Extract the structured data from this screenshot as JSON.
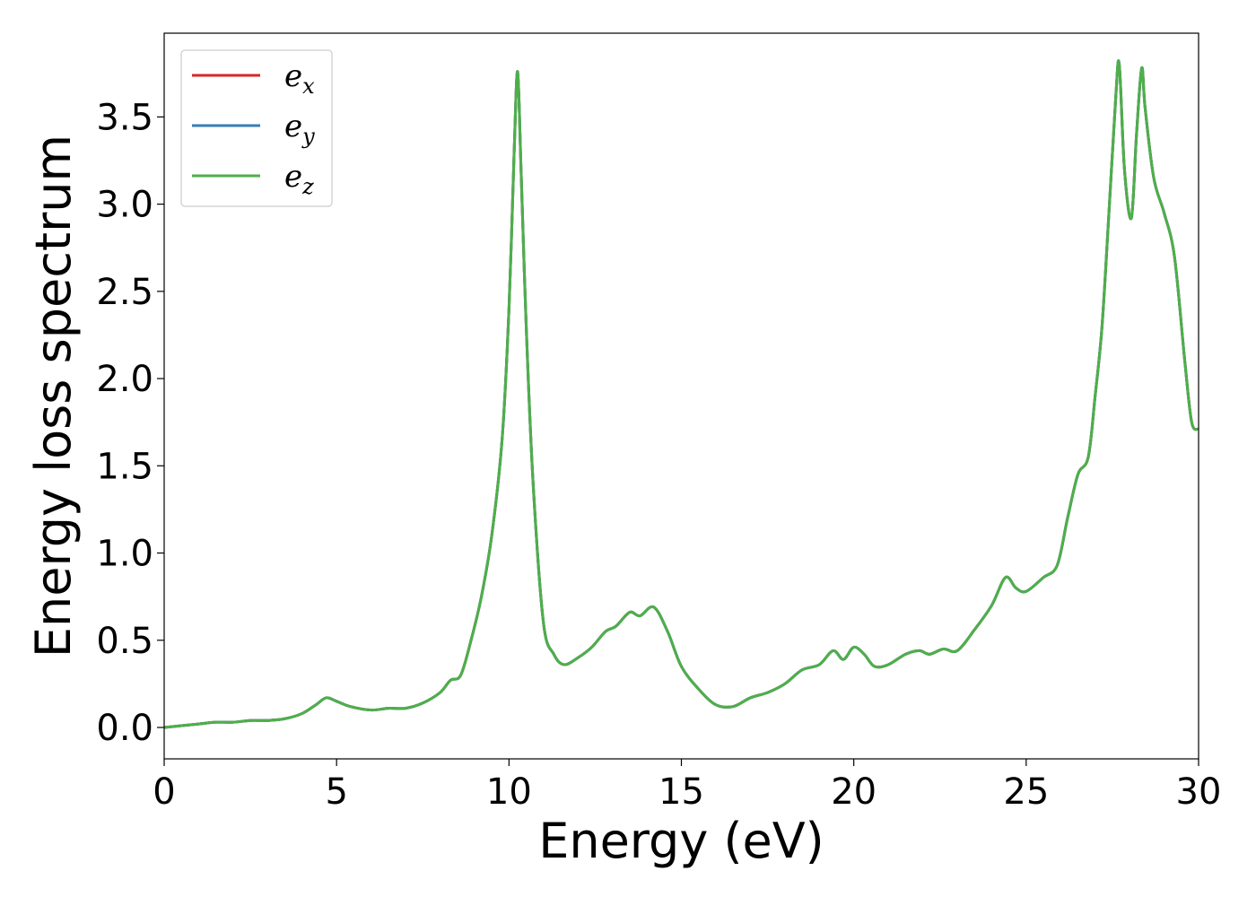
{
  "chart_data": {
    "type": "line",
    "xlabel": "Energy (eV)",
    "ylabel": "Energy loss spectrum",
    "xlim": [
      0,
      30
    ],
    "ylim": [
      -0.18,
      3.98
    ],
    "xticks": [
      0,
      5,
      10,
      15,
      20,
      25,
      30
    ],
    "xtick_labels": [
      "0",
      "5",
      "10",
      "15",
      "20",
      "25",
      "30"
    ],
    "yticks": [
      0.0,
      0.5,
      1.0,
      1.5,
      2.0,
      2.5,
      3.0,
      3.5
    ],
    "ytick_labels": [
      "0.0",
      "0.5",
      "1.0",
      "1.5",
      "2.0",
      "2.5",
      "3.0",
      "3.5"
    ],
    "grid": false,
    "legend_position": "top-left",
    "x": [
      0,
      0.5,
      1.0,
      1.5,
      2.0,
      2.5,
      3.0,
      3.5,
      4.0,
      4.4,
      4.7,
      5.0,
      5.4,
      6.0,
      6.5,
      7.0,
      7.5,
      8.0,
      8.3,
      8.6,
      8.9,
      9.2,
      9.5,
      9.8,
      10.0,
      10.15,
      10.25,
      10.35,
      10.5,
      10.7,
      11.0,
      11.3,
      11.6,
      12.0,
      12.4,
      12.8,
      13.1,
      13.5,
      13.8,
      14.2,
      14.6,
      15.0,
      15.5,
      16.0,
      16.5,
      17.0,
      17.5,
      18.0,
      18.5,
      19.0,
      19.4,
      19.7,
      20.0,
      20.3,
      20.6,
      21.0,
      21.5,
      21.9,
      22.2,
      22.6,
      23.0,
      23.5,
      24.0,
      24.4,
      24.7,
      25.0,
      25.5,
      25.9,
      26.2,
      26.5,
      26.8,
      27.0,
      27.2,
      27.4,
      27.6,
      27.7,
      27.85,
      28.05,
      28.2,
      28.35,
      28.45,
      28.7,
      29.0,
      29.3,
      29.6,
      29.8,
      30.0
    ],
    "series": [
      {
        "name": "e_x",
        "label_base": "e",
        "label_sub": "x",
        "color": "#d62728",
        "values": [
          0.0,
          0.01,
          0.02,
          0.03,
          0.03,
          0.04,
          0.04,
          0.05,
          0.08,
          0.13,
          0.17,
          0.15,
          0.12,
          0.1,
          0.11,
          0.11,
          0.14,
          0.2,
          0.27,
          0.3,
          0.5,
          0.75,
          1.1,
          1.65,
          2.4,
          3.3,
          3.76,
          3.2,
          2.3,
          1.4,
          0.6,
          0.42,
          0.36,
          0.4,
          0.46,
          0.55,
          0.58,
          0.66,
          0.64,
          0.69,
          0.55,
          0.35,
          0.22,
          0.13,
          0.12,
          0.17,
          0.2,
          0.25,
          0.33,
          0.36,
          0.44,
          0.39,
          0.46,
          0.42,
          0.35,
          0.36,
          0.42,
          0.44,
          0.42,
          0.45,
          0.44,
          0.56,
          0.7,
          0.86,
          0.8,
          0.78,
          0.86,
          0.93,
          1.2,
          1.45,
          1.55,
          1.9,
          2.3,
          2.95,
          3.62,
          3.8,
          3.2,
          2.92,
          3.4,
          3.78,
          3.55,
          3.15,
          2.95,
          2.7,
          2.1,
          1.75,
          1.71
        ]
      },
      {
        "name": "e_y",
        "label_base": "e",
        "label_sub": "y",
        "color": "#377eb8",
        "values": [
          0.0,
          0.01,
          0.02,
          0.03,
          0.03,
          0.04,
          0.04,
          0.05,
          0.08,
          0.13,
          0.17,
          0.15,
          0.12,
          0.1,
          0.11,
          0.11,
          0.14,
          0.2,
          0.27,
          0.3,
          0.5,
          0.75,
          1.1,
          1.65,
          2.4,
          3.3,
          3.76,
          3.2,
          2.3,
          1.4,
          0.6,
          0.42,
          0.36,
          0.4,
          0.46,
          0.55,
          0.58,
          0.66,
          0.64,
          0.69,
          0.55,
          0.35,
          0.22,
          0.13,
          0.12,
          0.17,
          0.2,
          0.25,
          0.33,
          0.36,
          0.44,
          0.39,
          0.46,
          0.42,
          0.35,
          0.36,
          0.42,
          0.44,
          0.42,
          0.45,
          0.44,
          0.56,
          0.7,
          0.86,
          0.8,
          0.78,
          0.86,
          0.93,
          1.2,
          1.45,
          1.55,
          1.9,
          2.3,
          2.95,
          3.62,
          3.8,
          3.2,
          2.92,
          3.4,
          3.78,
          3.55,
          3.15,
          2.95,
          2.7,
          2.1,
          1.75,
          1.71
        ]
      },
      {
        "name": "e_z",
        "label_base": "e",
        "label_sub": "z",
        "color": "#4daf4a",
        "values": [
          0.0,
          0.01,
          0.02,
          0.03,
          0.03,
          0.04,
          0.04,
          0.05,
          0.08,
          0.13,
          0.17,
          0.15,
          0.12,
          0.1,
          0.11,
          0.11,
          0.14,
          0.2,
          0.27,
          0.3,
          0.5,
          0.75,
          1.1,
          1.65,
          2.4,
          3.3,
          3.76,
          3.2,
          2.3,
          1.4,
          0.6,
          0.42,
          0.36,
          0.4,
          0.46,
          0.55,
          0.58,
          0.66,
          0.64,
          0.69,
          0.55,
          0.35,
          0.22,
          0.13,
          0.12,
          0.17,
          0.2,
          0.25,
          0.33,
          0.36,
          0.44,
          0.39,
          0.46,
          0.42,
          0.35,
          0.36,
          0.42,
          0.44,
          0.42,
          0.45,
          0.44,
          0.56,
          0.7,
          0.86,
          0.8,
          0.78,
          0.86,
          0.93,
          1.2,
          1.45,
          1.55,
          1.9,
          2.3,
          2.95,
          3.62,
          3.8,
          3.2,
          2.92,
          3.4,
          3.78,
          3.55,
          3.15,
          2.95,
          2.7,
          2.1,
          1.75,
          1.71
        ]
      }
    ]
  }
}
